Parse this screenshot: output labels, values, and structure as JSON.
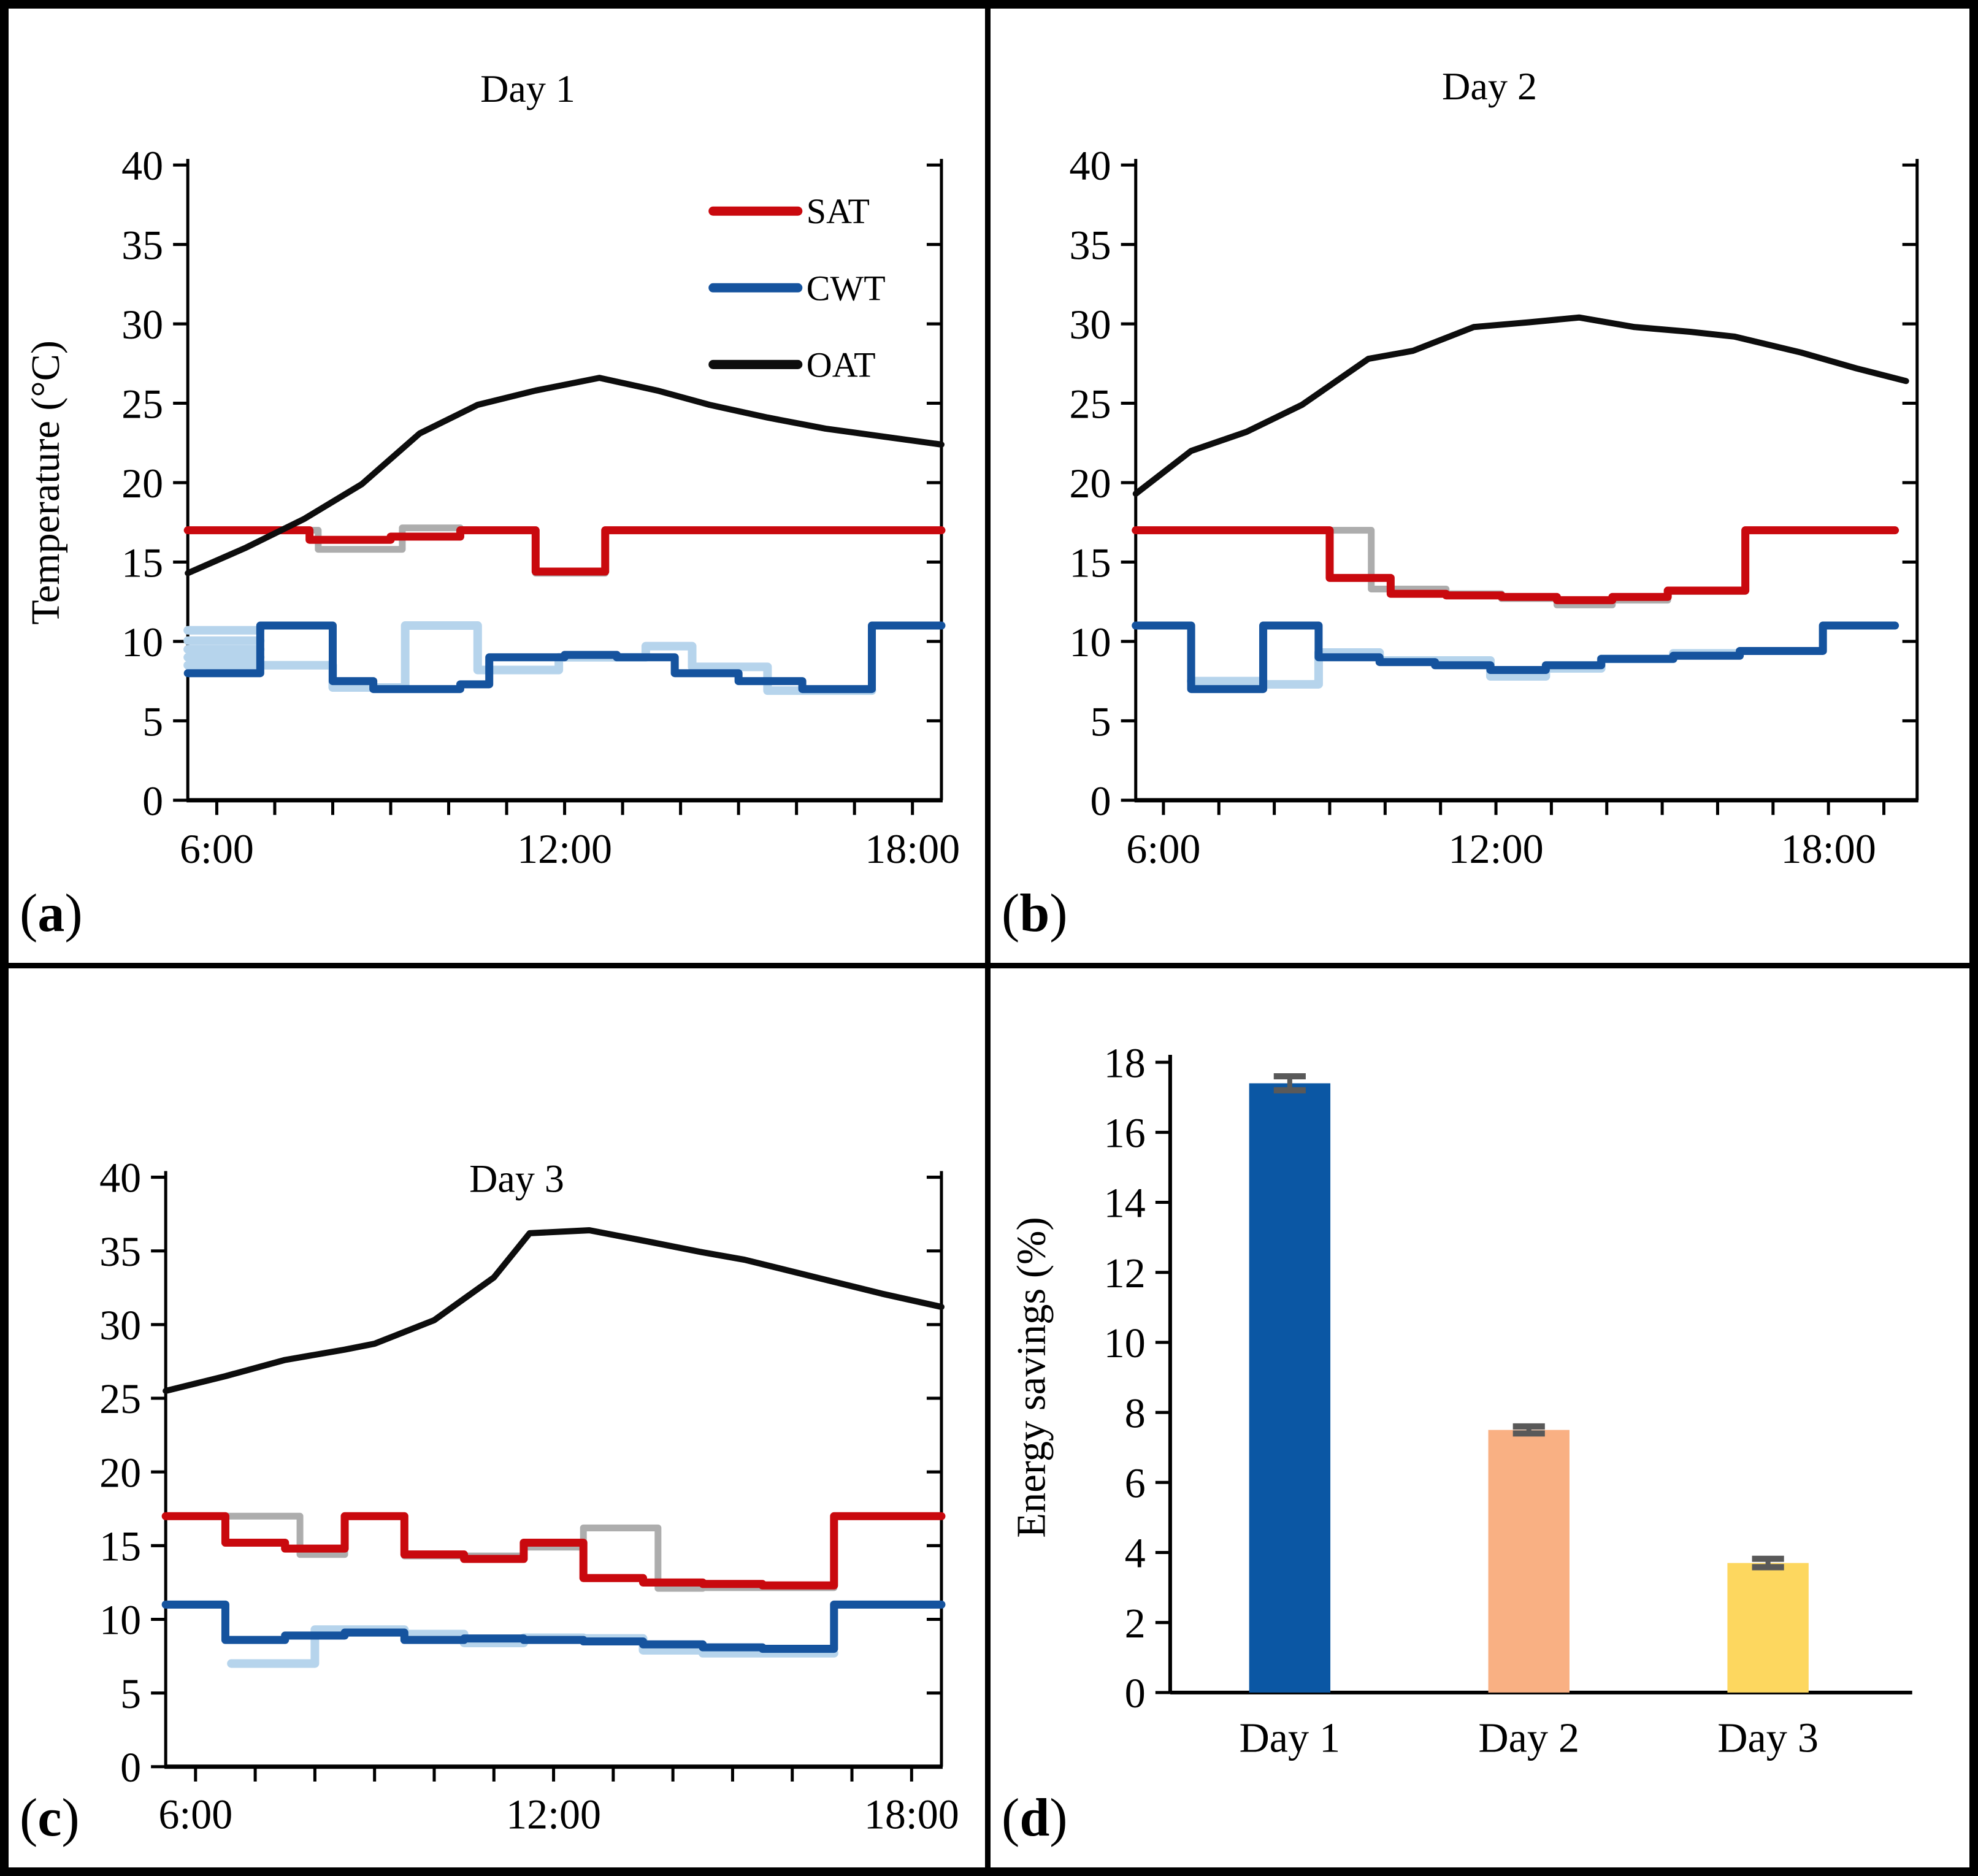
{
  "figure": {
    "panel_letters": {
      "a": "a",
      "b": "b",
      "c": "c",
      "d": "d"
    },
    "colors": {
      "sat": "#C9090E",
      "cwt": "#15539E",
      "oat": "#0D0D0D",
      "sat_actual": "#ADADAD",
      "cwt_actual": "#B6D4EC",
      "bar_day1": "#0B57A4",
      "bar_day2": "#F9B083",
      "bar_day3": "#FDD75F",
      "error_bar": "#595959"
    }
  },
  "chart_data": [
    {
      "id": "a",
      "type": "line",
      "title": "Day 1",
      "ylabel": "Temperature (°C)",
      "xlim": [
        5.5,
        18.5
      ],
      "ylim": [
        0,
        40
      ],
      "ytick_step": 5,
      "xtick_hours": [
        6,
        7,
        8,
        9,
        10,
        11,
        12,
        13,
        14,
        15,
        16,
        17,
        18
      ],
      "xtick_labels": [
        {
          "h": 6,
          "t": "6:00"
        },
        {
          "h": 12,
          "t": "12:00"
        },
        {
          "h": 18,
          "t": "18:00"
        }
      ],
      "legend": [
        {
          "label": "SAT",
          "color_key": "sat"
        },
        {
          "label": "CWT",
          "color_key": "cwt"
        },
        {
          "label": "OAT",
          "color_key": "oat"
        }
      ],
      "series": [
        {
          "name": "SAT-measured",
          "kind": "steps",
          "color_key": "sat_actual",
          "width": 11,
          "segments": [
            [
              5.5,
              7.75,
              17
            ],
            [
              7.75,
              9.2,
              15.8
            ],
            [
              9.2,
              10.2,
              17.15
            ],
            [
              10.2,
              11.5,
              17
            ],
            [
              11.5,
              12.7,
              14.3
            ],
            [
              12.7,
              18.5,
              17
            ]
          ]
        },
        {
          "name": "CWT-measured",
          "kind": "steps",
          "color_key": "cwt_actual",
          "width": 14,
          "segments": [
            [
              5.5,
              6.75,
              10.7
            ],
            [
              5.5,
              6.75,
              10.05
            ],
            [
              5.5,
              6.75,
              9.5
            ],
            [
              5.5,
              6.75,
              9.0
            ],
            [
              5.5,
              8.0,
              8.5
            ],
            [
              8.0,
              9.25,
              7.1
            ],
            [
              9.25,
              10.5,
              11
            ],
            [
              10.5,
              11.9,
              8.2
            ],
            [
              11.9,
              13.4,
              9.0
            ],
            [
              13.4,
              14.2,
              9.7
            ],
            [
              14.2,
              15.5,
              8.4
            ],
            [
              15.5,
              17.3,
              6.9
            ]
          ]
        },
        {
          "name": "CWT",
          "kind": "steps",
          "color_key": "cwt",
          "width": 13,
          "segments": [
            [
              5.5,
              6.75,
              8
            ],
            [
              6.75,
              8.0,
              11
            ],
            [
              8.0,
              8.7,
              7.5
            ],
            [
              8.7,
              10.2,
              7
            ],
            [
              10.2,
              10.7,
              7.3
            ],
            [
              10.7,
              12.0,
              9
            ],
            [
              12.0,
              12.9,
              9.15
            ],
            [
              12.9,
              13.9,
              9
            ],
            [
              13.9,
              15.0,
              8
            ],
            [
              15.0,
              16.1,
              7.5
            ],
            [
              16.1,
              17.3,
              7
            ],
            [
              17.3,
              18.5,
              11
            ]
          ]
        },
        {
          "name": "SAT",
          "kind": "steps",
          "color_key": "sat",
          "width": 13,
          "segments": [
            [
              5.5,
              7.6,
              17
            ],
            [
              7.6,
              9.0,
              16.4
            ],
            [
              9.0,
              10.2,
              16.6
            ],
            [
              10.2,
              11.5,
              17
            ],
            [
              11.5,
              12.7,
              14.4
            ],
            [
              12.7,
              18.5,
              17
            ]
          ]
        },
        {
          "name": "OAT",
          "kind": "line",
          "color_key": "oat",
          "width": 10,
          "points": [
            [
              5.5,
              14.3
            ],
            [
              6.5,
              15.9
            ],
            [
              7.5,
              17.7
            ],
            [
              8.5,
              19.9
            ],
            [
              9.5,
              23.1
            ],
            [
              10.5,
              24.9
            ],
            [
              11.5,
              25.8
            ],
            [
              12.6,
              26.6
            ],
            [
              13.6,
              25.8
            ],
            [
              14.5,
              24.9
            ],
            [
              15.5,
              24.1
            ],
            [
              16.5,
              23.4
            ],
            [
              17.5,
              22.9
            ],
            [
              18.5,
              22.4
            ]
          ]
        }
      ]
    },
    {
      "id": "b",
      "type": "line",
      "title": "Day 2",
      "ylabel": "",
      "xlim": [
        5.5,
        19.6
      ],
      "ylim": [
        0,
        40
      ],
      "ytick_step": 5,
      "xtick_hours": [
        6,
        7,
        8,
        9,
        10,
        11,
        12,
        13,
        14,
        15,
        16,
        17,
        18,
        19
      ],
      "xtick_labels": [
        {
          "h": 6,
          "t": "6:00"
        },
        {
          "h": 12,
          "t": "12:00"
        },
        {
          "h": 18,
          "t": "18:00"
        }
      ],
      "legend": [],
      "series": [
        {
          "name": "SAT-measured",
          "kind": "steps",
          "color_key": "sat_actual",
          "width": 11,
          "segments": [
            [
              5.5,
              9.75,
              17
            ],
            [
              9.75,
              11.1,
              13.3
            ],
            [
              11.1,
              12.1,
              13.0
            ],
            [
              12.1,
              13.1,
              12.7
            ],
            [
              13.1,
              14.1,
              12.3
            ],
            [
              14.1,
              15.1,
              12.6
            ],
            [
              15.1,
              16.5,
              13.15
            ],
            [
              16.5,
              19.2,
              17
            ]
          ]
        },
        {
          "name": "CWT-measured",
          "kind": "steps",
          "color_key": "cwt_actual",
          "width": 14,
          "segments": [
            [
              6.5,
              7.8,
              7.5
            ],
            [
              7.8,
              8.8,
              7.3
            ],
            [
              8.8,
              9.9,
              9.3
            ],
            [
              9.9,
              11.9,
              8.8
            ],
            [
              11.9,
              12.9,
              7.8
            ],
            [
              12.9,
              13.9,
              8.3
            ],
            [
              13.9,
              15.2,
              8.9
            ],
            [
              15.2,
              16.4,
              9.25
            ]
          ]
        },
        {
          "name": "CWT",
          "kind": "steps",
          "color_key": "cwt",
          "width": 13,
          "segments": [
            [
              5.5,
              6.5,
              11
            ],
            [
              6.5,
              7.8,
              7
            ],
            [
              7.8,
              8.8,
              11
            ],
            [
              8.8,
              9.9,
              9
            ],
            [
              9.9,
              10.9,
              8.7
            ],
            [
              10.9,
              11.9,
              8.5
            ],
            [
              11.9,
              12.9,
              8.2
            ],
            [
              12.9,
              13.9,
              8.5
            ],
            [
              13.9,
              15.2,
              8.9
            ],
            [
              15.2,
              16.4,
              9.1
            ],
            [
              16.4,
              17.9,
              9.4
            ],
            [
              17.9,
              19.2,
              11
            ]
          ]
        },
        {
          "name": "SAT",
          "kind": "steps",
          "color_key": "sat",
          "width": 13,
          "segments": [
            [
              5.5,
              9.0,
              17
            ],
            [
              9.0,
              10.1,
              14
            ],
            [
              10.1,
              11.1,
              13
            ],
            [
              11.1,
              12.1,
              12.9
            ],
            [
              12.1,
              13.1,
              12.8
            ],
            [
              13.1,
              14.1,
              12.6
            ],
            [
              14.1,
              15.1,
              12.8
            ],
            [
              15.1,
              16.5,
              13.2
            ],
            [
              16.5,
              19.2,
              17
            ]
          ]
        },
        {
          "name": "OAT",
          "kind": "line",
          "color_key": "oat",
          "width": 10,
          "points": [
            [
              5.5,
              19.3
            ],
            [
              6.5,
              22.0
            ],
            [
              7.5,
              23.2
            ],
            [
              8.5,
              24.9
            ],
            [
              9.7,
              27.8
            ],
            [
              10.5,
              28.3
            ],
            [
              11.6,
              29.8
            ],
            [
              12.6,
              30.1
            ],
            [
              13.5,
              30.4
            ],
            [
              14.5,
              29.8
            ],
            [
              15.5,
              29.5
            ],
            [
              16.3,
              29.2
            ],
            [
              17.5,
              28.2
            ],
            [
              18.5,
              27.2
            ],
            [
              19.4,
              26.4
            ]
          ]
        }
      ]
    },
    {
      "id": "c",
      "type": "line",
      "title": "Day 3",
      "ylabel": "",
      "xlim": [
        5.5,
        18.5
      ],
      "ylim": [
        0,
        40
      ],
      "ytick_step": 5,
      "xtick_hours": [
        6,
        7,
        8,
        9,
        10,
        11,
        12,
        13,
        14,
        15,
        16,
        17,
        18
      ],
      "xtick_labels": [
        {
          "h": 6,
          "t": "6:00"
        },
        {
          "h": 12,
          "t": "12:00"
        },
        {
          "h": 18,
          "t": "18:00"
        }
      ],
      "legend": [],
      "series": [
        {
          "name": "SAT-measured",
          "kind": "steps",
          "color_key": "sat_actual",
          "width": 11,
          "segments": [
            [
              5.5,
              7.75,
              17
            ],
            [
              7.75,
              8.5,
              14.4
            ],
            [
              8.5,
              9.5,
              17
            ],
            [
              9.5,
              11.5,
              14.3
            ],
            [
              11.5,
              12.5,
              14.9
            ],
            [
              12.5,
              13.75,
              16.2
            ],
            [
              13.75,
              14.5,
              12.1
            ],
            [
              14.5,
              16.7,
              12.15
            ],
            [
              16.7,
              18.5,
              17
            ]
          ]
        },
        {
          "name": "CWT-measured",
          "kind": "steps",
          "color_key": "cwt_actual",
          "width": 14,
          "segments": [
            [
              6.6,
              8.0,
              7.0
            ],
            [
              8.0,
              9.5,
              9.3
            ],
            [
              9.5,
              10.5,
              9.0
            ],
            [
              10.5,
              11.5,
              8.4
            ],
            [
              11.5,
              12.5,
              8.75
            ],
            [
              12.5,
              13.5,
              8.7
            ],
            [
              13.5,
              14.5,
              7.9
            ],
            [
              14.5,
              16.7,
              7.7
            ]
          ]
        },
        {
          "name": "CWT",
          "kind": "steps",
          "color_key": "cwt",
          "width": 13,
          "segments": [
            [
              5.5,
              6.5,
              11
            ],
            [
              6.5,
              7.5,
              8.6
            ],
            [
              7.5,
              8.5,
              8.9
            ],
            [
              8.5,
              9.5,
              9.1
            ],
            [
              9.5,
              10.5,
              8.6
            ],
            [
              10.5,
              11.5,
              8.7
            ],
            [
              11.5,
              12.5,
              8.6
            ],
            [
              12.5,
              13.5,
              8.5
            ],
            [
              13.5,
              14.5,
              8.3
            ],
            [
              14.5,
              15.5,
              8.1
            ],
            [
              15.5,
              16.7,
              8.0
            ],
            [
              16.7,
              18.5,
              11
            ]
          ]
        },
        {
          "name": "SAT",
          "kind": "steps",
          "color_key": "sat",
          "width": 13,
          "segments": [
            [
              5.5,
              6.5,
              17
            ],
            [
              6.5,
              7.5,
              15.2
            ],
            [
              7.5,
              8.5,
              14.8
            ],
            [
              8.5,
              9.5,
              17
            ],
            [
              9.5,
              10.5,
              14.4
            ],
            [
              10.5,
              11.5,
              14.1
            ],
            [
              11.5,
              12.5,
              15.2
            ],
            [
              12.5,
              13.5,
              12.8
            ],
            [
              13.5,
              14.5,
              12.5
            ],
            [
              14.5,
              15.5,
              12.4
            ],
            [
              15.5,
              16.7,
              12.3
            ],
            [
              16.7,
              18.5,
              17
            ]
          ]
        },
        {
          "name": "OAT",
          "kind": "line",
          "color_key": "oat",
          "width": 10,
          "points": [
            [
              5.5,
              25.5
            ],
            [
              6.5,
              26.5
            ],
            [
              7.5,
              27.6
            ],
            [
              8.5,
              28.3
            ],
            [
              9.0,
              28.7
            ],
            [
              10.0,
              30.3
            ],
            [
              11.0,
              33.2
            ],
            [
              11.6,
              36.2
            ],
            [
              12.6,
              36.4
            ],
            [
              13.5,
              35.7
            ],
            [
              14.5,
              34.9
            ],
            [
              15.2,
              34.4
            ],
            [
              16.5,
              33.1
            ],
            [
              17.5,
              32.1
            ],
            [
              18.5,
              31.2
            ]
          ]
        }
      ]
    },
    {
      "id": "d",
      "type": "bar",
      "title": "",
      "ylabel": "Energy savings (%)",
      "ylim": [
        0,
        18
      ],
      "ytick_step": 2,
      "categories": [
        "Day 1",
        "Day 2",
        "Day 3"
      ],
      "values": [
        17.4,
        7.5,
        3.7
      ],
      "errors": [
        0.2,
        0.1,
        0.12
      ],
      "bar_color_keys": [
        "bar_day1",
        "bar_day2",
        "bar_day3"
      ]
    }
  ]
}
